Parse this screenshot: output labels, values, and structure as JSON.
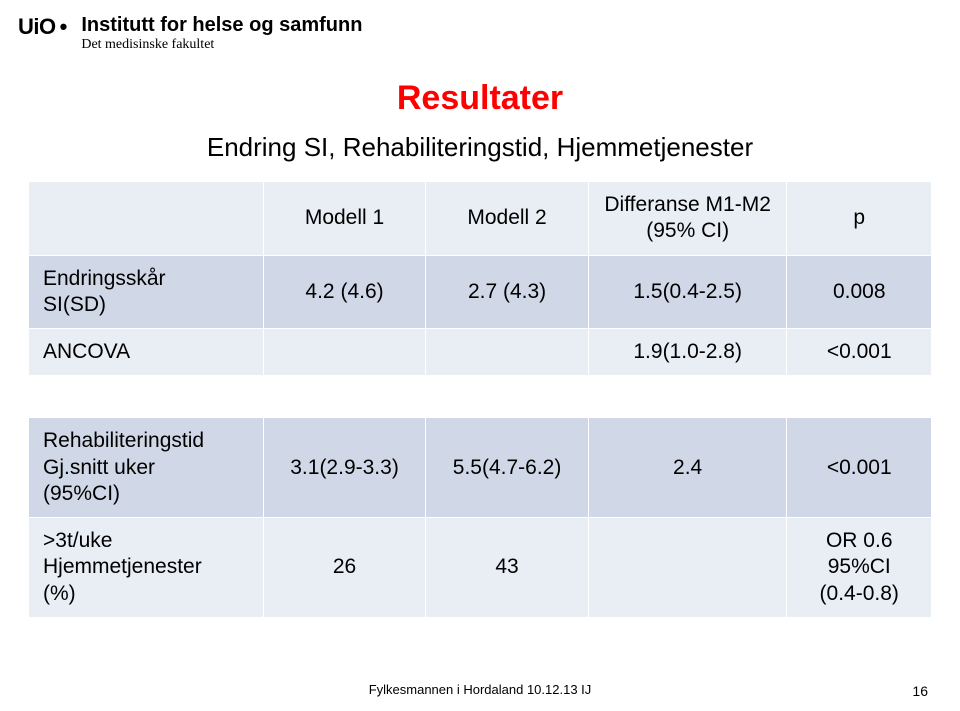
{
  "header": {
    "uio": "UiO",
    "institute": "Institutt for helse og samfunn",
    "faculty": "Det medisinske fakultet"
  },
  "title": "Resultater",
  "subtitle": "Endring SI, Rehabiliteringstid, Hjemmetjenester",
  "table": {
    "columns": [
      "",
      "Modell 1",
      "Modell 2",
      "Differanse M1-M2\n(95% CI)",
      "p"
    ],
    "rows_top": [
      {
        "label": "Endringsskår\nSI(SD)",
        "cells": [
          "4.2 (4.6)",
          "2.7 (4.3)",
          "1.5(0.4-2.5)",
          "0.008"
        ]
      },
      {
        "label": "ANCOVA",
        "cells": [
          "",
          "",
          "1.9(1.0-2.8)",
          "<0.001"
        ]
      }
    ],
    "rows_bottom": [
      {
        "label": "Rehabiliteringstid\nGj.snitt uker\n(95%CI)",
        "cells": [
          "3.1(2.9-3.3)",
          "5.5(4.7-6.2)",
          "2.4",
          "<0.001"
        ]
      },
      {
        "label": ">3t/uke\nHjemmetjenester\n(%)",
        "cells": [
          "26",
          "43",
          "",
          "OR 0.6\n95%CI\n(0.4-0.8)"
        ]
      }
    ],
    "styling": {
      "header_bg": "#e9edf4",
      "row_even_bg": "#e9edf4",
      "row_odd_bg": "#d0d8e7",
      "border_color": "#ffffff",
      "font_size": 21,
      "col_widths_pct": [
        26,
        18,
        18,
        22,
        16
      ]
    }
  },
  "footer": {
    "text": "Fylkesmannen i Hordaland 10.12.13 IJ",
    "page": "16"
  },
  "colors": {
    "title": "#ff0000",
    "text": "#000000",
    "background": "#ffffff"
  }
}
